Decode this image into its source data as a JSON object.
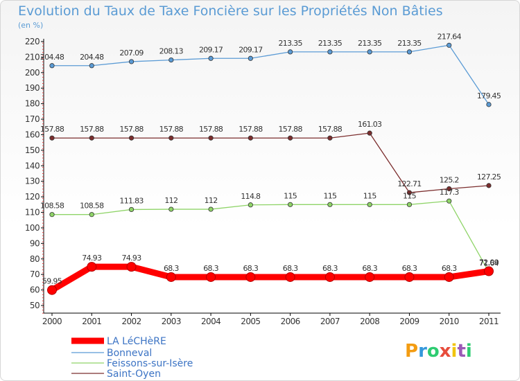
{
  "chart_data": {
    "type": "line",
    "title": "Evolution du Taux de Taxe Foncière sur les Propriétés Non Bâties",
    "subtitle": "(en %)",
    "xlabel": "",
    "ylabel": "",
    "x": [
      "2000",
      "2001",
      "2002",
      "2003",
      "2004",
      "2005",
      "2006",
      "2007",
      "2008",
      "2009",
      "2010",
      "2011"
    ],
    "yticks": [
      50,
      60,
      70,
      80,
      90,
      100,
      110,
      120,
      130,
      140,
      150,
      160,
      170,
      180,
      190,
      200,
      210,
      220
    ],
    "ylim": [
      45,
      220
    ],
    "grid": false,
    "legend_position": "bottom-left",
    "series": [
      {
        "name": "LA LéCHèRE",
        "color": "#ff0000",
        "values": [
          59.95,
          74.93,
          74.93,
          68.3,
          68.3,
          68.3,
          68.3,
          68.3,
          68.3,
          68.3,
          68.3,
          72.09
        ],
        "labels": [
          "59.95",
          "74.93",
          "74.93",
          "68.3",
          "68.3",
          "68.3",
          "68.3",
          "68.3",
          "68.3",
          "68.3",
          "68.3",
          "72.09"
        ]
      },
      {
        "name": "Bonneval",
        "color": "#5b9bd5",
        "values": [
          204.48,
          204.48,
          207.09,
          208.13,
          209.17,
          209.17,
          213.35,
          213.35,
          213.35,
          213.35,
          217.64,
          179.45
        ],
        "labels": [
          "204.48",
          "204.48",
          "207.09",
          "208.13",
          "209.17",
          "209.17",
          "213.35",
          "213.35",
          "213.35",
          "213.35",
          "217.64",
          "179.45"
        ]
      },
      {
        "name": "Feissons-sur-Isère",
        "color": "#8fd468",
        "values": [
          108.58,
          108.58,
          111.83,
          112,
          112,
          114.8,
          115,
          115,
          115,
          115,
          117.3,
          71.64
        ],
        "labels": [
          "108.58",
          "108.58",
          "111.83",
          "112",
          "112",
          "114.8",
          "115",
          "115",
          "115",
          "115",
          "117.3",
          "71.64"
        ]
      },
      {
        "name": "Saint-Oyen",
        "color": "#7b2d2d",
        "values": [
          157.88,
          157.88,
          157.88,
          157.88,
          157.88,
          157.88,
          157.88,
          157.88,
          161.03,
          122.71,
          125.2,
          127.25
        ],
        "labels": [
          "157.88",
          "157.88",
          "157.88",
          "157.88",
          "157.88",
          "157.88",
          "157.88",
          "157.88",
          "161.03",
          "122.71",
          "125.2",
          "127.25"
        ]
      }
    ]
  },
  "logo": {
    "letters": [
      "P",
      "r",
      "o",
      "x",
      "i",
      "t",
      "i"
    ],
    "colors": [
      "#f39c12",
      "#3498db",
      "#2ecc71",
      "#e74c3c",
      "#f1c40f",
      "#9b59b6",
      "#2ecc71"
    ]
  }
}
